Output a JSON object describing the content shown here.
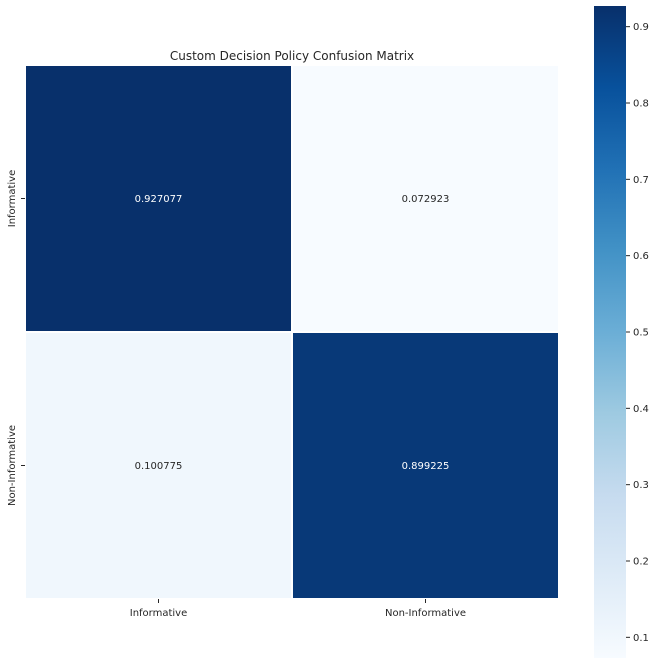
{
  "chart_data": {
    "type": "heatmap",
    "title": "Custom Decision Policy Confusion Matrix",
    "xlabel": "",
    "ylabel": "",
    "x_categories": [
      "Informative",
      "Non-Informative"
    ],
    "y_categories": [
      "Informative",
      "Non-Informative"
    ],
    "values": [
      [
        0.927077,
        0.072923
      ],
      [
        0.100775,
        0.899225
      ]
    ],
    "value_labels": [
      [
        "0.927077",
        "0.072923"
      ],
      [
        "0.100775",
        "0.899225"
      ]
    ],
    "colormap": "Blues",
    "colorbar": {
      "min": 0.072923,
      "max": 0.927077,
      "ticks": [
        0.1,
        0.2,
        0.3,
        0.4,
        0.5,
        0.6,
        0.7,
        0.8,
        0.9
      ],
      "tick_labels": [
        "0.1",
        "0.2",
        "0.3",
        "0.4",
        "0.5",
        "0.6",
        "0.7",
        "0.8",
        "0.9"
      ]
    },
    "grid": false
  }
}
